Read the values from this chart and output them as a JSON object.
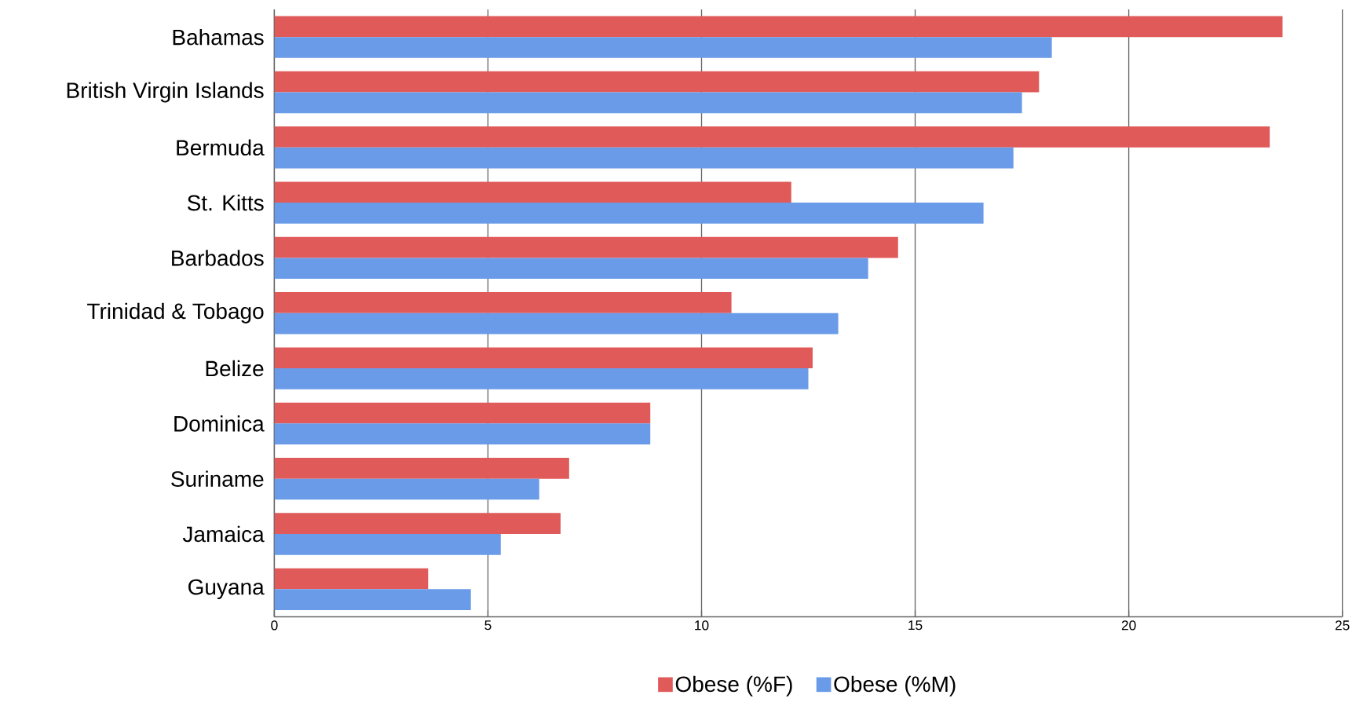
{
  "chart_data": {
    "type": "bar",
    "orientation": "horizontal",
    "categories": [
      "Bahamas",
      "British Virgin Islands",
      "Bermuda",
      "St. Kitts",
      "Barbados",
      "Trinidad & Tobago",
      "Belize",
      "Dominica",
      "Suriname",
      "Jamaica",
      "Guyana"
    ],
    "series": [
      {
        "name": "Obese (%F)",
        "color": "#e05a5a",
        "values": [
          23.6,
          17.9,
          23.3,
          12.1,
          14.6,
          10.7,
          12.6,
          8.8,
          6.9,
          6.7,
          3.6
        ]
      },
      {
        "name": "Obese (%M)",
        "color": "#6a9be8",
        "values": [
          18.2,
          17.5,
          17.3,
          16.6,
          13.9,
          13.2,
          12.5,
          8.8,
          6.2,
          5.3,
          4.6
        ]
      }
    ],
    "xlim": [
      0,
      25
    ],
    "xticks": [
      0,
      5,
      10,
      15,
      20,
      25
    ],
    "grid": "x",
    "legend": "bottom"
  }
}
